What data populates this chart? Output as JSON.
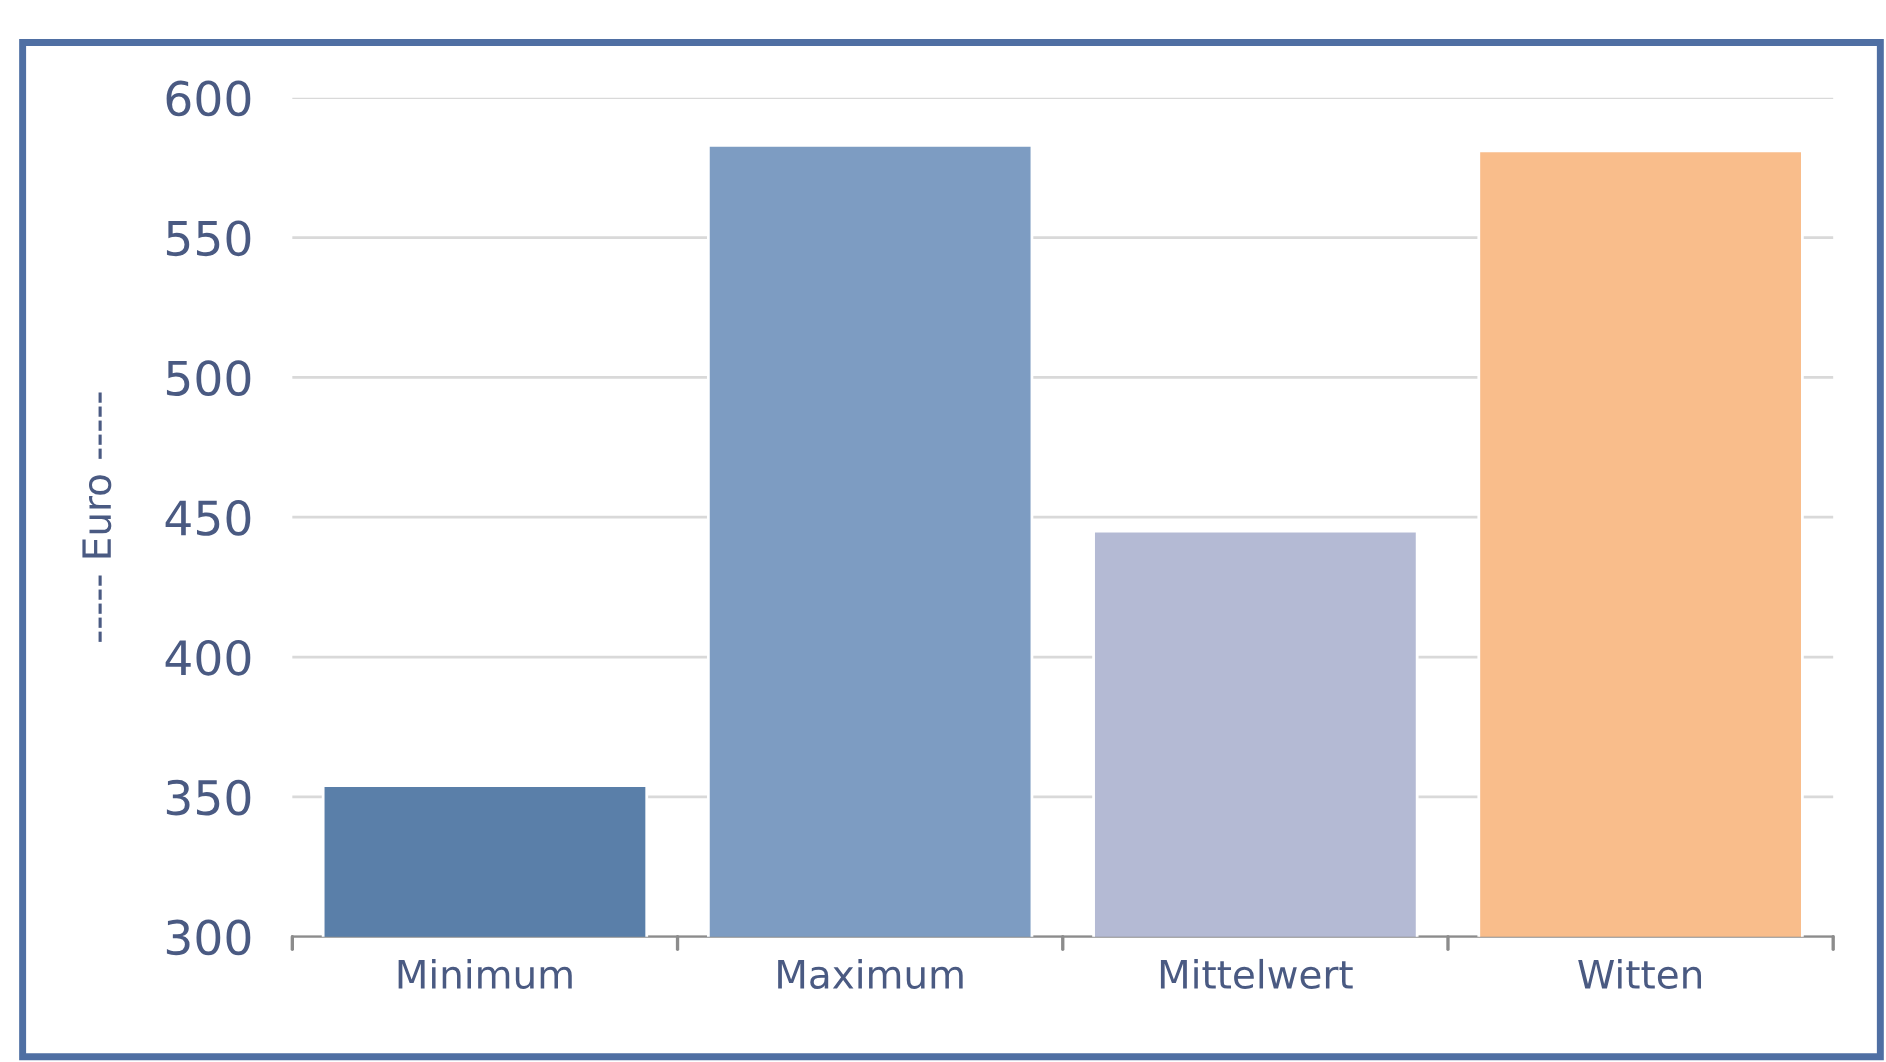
{
  "chart_data": {
    "type": "bar",
    "ylabel": "----- Euro -----",
    "categories": [
      "Minimum",
      "Maximum",
      "Mittelwert",
      "Witten"
    ],
    "values": [
      354,
      583,
      445,
      581
    ],
    "colors": [
      "#5a7fa9",
      "#7d9cc2",
      "#b4bad4",
      "#f9bd8b"
    ],
    "ylim": [
      300,
      600
    ],
    "yticks": [
      300,
      350,
      400,
      450,
      500,
      550,
      600
    ],
    "grid": "y"
  }
}
